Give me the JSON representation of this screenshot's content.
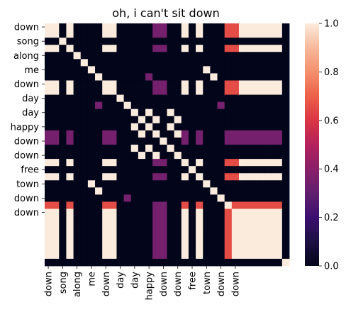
{
  "chart_data": {
    "type": "heatmap",
    "title": "oh, i can't sit down",
    "tokens": [
      "down",
      "down",
      "song",
      "down",
      "down",
      "along",
      "me",
      "me",
      "down",
      "down",
      "down",
      "day",
      "day",
      "day",
      "day",
      "happy",
      "happy",
      "down",
      "down",
      "down",
      "down",
      "down",
      "down",
      "free",
      "free",
      "town",
      "town",
      "down",
      "down",
      "down",
      "down",
      "down",
      "down",
      ""
    ],
    "x_tick_labels": [
      "down",
      "song",
      "along",
      "me",
      "down",
      "day",
      "day",
      "happy",
      "down",
      "down",
      "free",
      "town",
      "down",
      "down"
    ],
    "y_tick_labels": [
      "down",
      "song",
      "along",
      "me",
      "down",
      "day",
      "day",
      "happy",
      "down",
      "down",
      "free",
      "town",
      "down",
      "down"
    ],
    "value_range": [
      0.0,
      1.0
    ],
    "colorbar_ticks": [
      0.0,
      0.2,
      0.4,
      0.6,
      0.8,
      1.0
    ],
    "colorscale": "rocket",
    "matrix_note_values": "attention weights; values 0, ~0.35, ~0.65, 1.0",
    "values": [
      [
        1,
        1,
        0,
        1,
        0,
        0,
        0,
        0,
        1,
        1,
        0,
        0,
        0,
        0,
        0,
        0.35,
        0.35,
        0,
        0,
        1,
        0,
        1,
        0,
        0,
        0,
        0.65,
        0.65,
        1,
        1,
        1,
        1,
        1,
        1,
        0
      ],
      [
        1,
        1,
        0,
        1,
        0,
        0,
        0,
        0,
        1,
        1,
        0,
        0,
        0,
        0,
        0,
        0.35,
        0.35,
        0,
        0,
        1,
        0,
        1,
        0,
        0,
        0,
        0.65,
        0.65,
        1,
        1,
        1,
        1,
        1,
        1,
        0
      ],
      [
        0,
        0,
        1,
        0,
        0,
        0,
        0,
        0,
        0,
        0,
        0,
        0,
        0,
        0,
        0,
        0,
        0,
        0,
        0,
        0,
        0,
        0,
        0,
        0,
        0,
        0,
        0,
        0,
        0,
        0,
        0,
        0,
        0,
        0
      ],
      [
        1,
        1,
        0,
        1,
        0,
        0,
        0,
        0,
        1,
        1,
        0,
        0,
        0,
        0,
        0,
        0.35,
        0.35,
        0,
        0,
        1,
        0,
        1,
        0,
        0,
        0,
        0.65,
        0.65,
        1,
        1,
        1,
        1,
        1,
        1,
        0
      ],
      [
        0,
        0,
        0,
        0,
        1,
        0,
        0,
        0,
        0,
        0,
        0,
        0,
        0,
        0,
        0,
        0,
        0,
        0,
        0,
        0,
        0,
        0,
        0,
        0,
        0,
        0,
        0,
        0,
        0,
        0,
        0,
        0,
        0,
        0
      ],
      [
        0,
        0,
        0,
        0,
        0,
        1,
        0,
        0,
        0,
        0,
        0,
        0,
        0,
        0,
        0,
        0,
        0,
        0,
        0,
        0,
        0,
        0,
        0,
        0,
        0,
        0,
        0,
        0,
        0,
        0,
        0,
        0,
        0,
        0
      ],
      [
        0,
        0,
        0,
        0,
        0,
        0,
        1,
        0,
        0,
        0,
        0,
        0,
        0,
        0,
        0,
        0,
        0,
        0,
        0,
        0,
        0,
        0,
        1,
        0,
        0,
        0,
        0,
        0,
        0,
        0,
        0,
        0,
        0,
        0
      ],
      [
        0,
        0,
        0,
        0,
        0,
        0,
        0,
        1,
        0,
        0,
        0,
        0,
        0,
        0,
        0.35,
        0,
        0,
        0,
        0,
        0,
        0,
        0,
        0,
        1,
        0,
        0,
        0,
        0,
        0,
        0,
        0,
        0,
        0,
        0
      ],
      [
        1,
        1,
        0,
        1,
        0,
        0,
        0,
        0,
        1,
        1,
        0,
        0,
        0,
        0,
        0,
        0.35,
        0.35,
        0,
        0,
        1,
        0,
        1,
        0,
        0,
        0,
        0.65,
        0.65,
        1,
        1,
        1,
        1,
        1,
        1,
        0
      ],
      [
        1,
        1,
        0,
        1,
        0,
        0,
        0,
        0,
        1,
        1,
        0,
        0,
        0,
        0,
        0,
        0.35,
        0.35,
        0,
        0,
        1,
        0,
        1,
        0,
        0,
        0,
        0.65,
        0.65,
        1,
        1,
        1,
        1,
        1,
        1,
        0
      ],
      [
        0,
        0,
        0,
        0,
        0,
        0,
        0,
        0,
        0,
        0,
        1,
        0,
        0,
        0,
        0,
        0,
        0,
        0,
        0,
        0,
        0,
        0,
        0,
        0,
        0,
        0,
        0,
        0,
        0,
        0,
        0,
        0,
        0,
        0
      ],
      [
        0,
        0,
        0,
        0,
        0,
        0,
        0,
        0.35,
        0,
        0,
        0,
        1,
        0,
        0,
        0,
        0,
        0,
        0,
        0,
        0,
        0,
        0,
        0,
        0,
        0.35,
        0,
        0,
        0,
        0,
        0,
        0,
        0,
        0,
        0
      ],
      [
        0,
        0,
        0,
        0,
        0,
        0,
        0,
        0,
        0,
        0,
        0,
        0,
        1,
        0,
        1,
        0,
        0,
        1,
        0,
        0,
        0,
        0,
        0,
        0,
        0,
        0,
        0,
        0,
        0,
        0,
        0,
        0,
        0,
        0
      ],
      [
        0,
        0,
        0,
        0,
        0,
        0,
        0,
        0,
        0,
        0,
        0,
        0,
        0,
        1,
        0,
        1,
        0,
        0,
        1,
        0,
        0,
        0,
        0,
        0,
        0,
        0,
        0,
        0,
        0,
        0,
        0,
        0,
        0,
        0
      ],
      [
        0,
        0,
        0,
        0,
        0,
        0,
        0,
        0,
        0,
        0,
        0,
        0,
        1,
        0,
        1,
        0,
        0,
        1,
        0,
        0,
        0,
        0,
        0,
        0,
        0,
        0,
        0,
        0,
        0,
        0,
        0,
        0,
        0,
        0
      ],
      [
        0.35,
        0.35,
        0,
        0.35,
        0,
        0,
        0,
        0,
        0.35,
        0.35,
        0,
        0,
        0,
        1,
        0,
        1,
        0,
        0,
        1,
        0.35,
        0,
        0.35,
        0,
        0,
        0,
        0.35,
        0.35,
        0.35,
        0.35,
        0.35,
        0.35,
        0.35,
        0.35,
        0
      ],
      [
        0.35,
        0.35,
        0,
        0.35,
        0,
        0,
        0,
        0,
        0.35,
        0.35,
        0,
        0,
        0,
        0,
        0,
        0,
        1,
        0,
        0,
        0.35,
        0,
        0.35,
        0,
        0,
        0,
        0.35,
        0.35,
        0.35,
        0.35,
        0.35,
        0.35,
        0.35,
        0.35,
        0
      ],
      [
        0,
        0,
        0,
        0,
        0,
        0,
        0,
        0,
        0,
        0,
        0,
        0,
        1,
        0,
        1,
        0,
        0,
        1,
        0,
        0,
        0,
        0,
        0,
        0,
        0,
        0,
        0,
        0,
        0,
        0,
        0,
        0,
        0,
        0
      ],
      [
        0,
        0,
        0,
        0,
        0,
        0,
        0,
        0,
        0,
        0,
        0,
        0,
        0,
        1,
        0,
        1,
        0,
        0,
        1,
        0,
        0,
        0,
        0,
        0,
        0,
        0,
        0,
        0,
        0,
        0,
        0,
        0,
        0,
        0
      ],
      [
        1,
        1,
        0,
        1,
        0,
        0,
        0,
        0,
        1,
        1,
        0,
        0,
        0,
        0,
        0,
        0.35,
        0.35,
        0,
        0,
        1,
        0,
        1,
        0,
        0,
        0,
        0.65,
        0.65,
        1,
        1,
        1,
        1,
        1,
        1,
        0
      ],
      [
        0,
        0,
        0,
        0,
        0,
        0,
        0,
        0,
        0,
        0,
        0,
        0,
        0,
        0,
        0,
        0,
        0,
        0,
        0,
        0,
        1,
        0,
        0,
        0,
        0,
        0,
        0,
        0,
        0,
        0,
        0,
        0,
        0,
        0
      ],
      [
        1,
        1,
        0,
        1,
        0,
        0,
        0,
        0,
        1,
        1,
        0,
        0,
        0,
        0,
        0,
        0.35,
        0.35,
        0,
        0,
        1,
        0,
        1,
        0,
        0,
        0,
        0.65,
        0.65,
        1,
        1,
        1,
        1,
        1,
        1,
        0
      ],
      [
        0,
        0,
        0,
        0,
        0,
        0,
        1,
        0,
        0,
        0,
        0,
        0,
        0,
        0,
        0,
        0,
        0,
        0,
        0,
        0,
        0,
        0,
        1,
        0,
        0,
        0,
        0,
        0,
        0,
        0,
        0,
        0,
        0,
        0
      ],
      [
        0,
        0,
        0,
        0,
        0,
        0,
        0,
        1,
        0,
        0,
        0,
        0,
        0,
        0,
        0,
        0,
        0,
        0,
        0,
        0,
        0,
        0,
        0,
        1,
        0,
        0,
        0,
        0,
        0,
        0,
        0,
        0,
        0,
        0
      ],
      [
        0,
        0,
        0,
        0,
        0,
        0,
        0,
        0,
        0,
        0,
        0,
        0.35,
        0,
        0,
        0,
        0,
        0,
        0,
        0,
        0,
        0,
        0,
        0,
        0,
        1,
        0,
        0,
        0,
        0,
        0,
        0,
        0,
        0,
        0
      ],
      [
        0.65,
        0.65,
        0,
        0.65,
        0,
        0,
        0,
        0,
        0.65,
        0.65,
        0,
        0,
        0,
        0,
        0,
        0.35,
        0.35,
        0,
        0,
        0.65,
        0,
        0.65,
        0,
        0,
        0,
        1,
        0.65,
        0.65,
        0.65,
        0.65,
        0.65,
        0.65,
        0.65,
        0
      ],
      [
        1,
        1,
        0,
        1,
        0,
        0,
        0,
        0,
        1,
        1,
        0,
        0,
        0,
        0,
        0,
        0.35,
        0.35,
        0,
        0,
        1,
        0,
        1,
        0,
        0,
        0,
        0.65,
        1,
        1,
        1,
        1,
        1,
        1,
        1,
        0
      ],
      [
        1,
        1,
        0,
        1,
        0,
        0,
        0,
        0,
        1,
        1,
        0,
        0,
        0,
        0,
        0,
        0.35,
        0.35,
        0,
        0,
        1,
        0,
        1,
        0,
        0,
        0,
        0.65,
        1,
        1,
        1,
        1,
        1,
        1,
        1,
        0
      ],
      [
        1,
        1,
        0,
        1,
        0,
        0,
        0,
        0,
        1,
        1,
        0,
        0,
        0,
        0,
        0,
        0.35,
        0.35,
        0,
        0,
        1,
        0,
        1,
        0,
        0,
        0,
        0.65,
        1,
        1,
        1,
        1,
        1,
        1,
        1,
        0
      ],
      [
        1,
        1,
        0,
        1,
        0,
        0,
        0,
        0,
        1,
        1,
        0,
        0,
        0,
        0,
        0,
        0.35,
        0.35,
        0,
        0,
        1,
        0,
        1,
        0,
        0,
        0,
        0.65,
        1,
        1,
        1,
        1,
        1,
        1,
        1,
        0
      ],
      [
        1,
        1,
        0,
        1,
        0,
        0,
        0,
        0,
        1,
        1,
        0,
        0,
        0,
        0,
        0,
        0.35,
        0.35,
        0,
        0,
        1,
        0,
        1,
        0,
        0,
        0,
        0.65,
        1,
        1,
        1,
        1,
        1,
        1,
        1,
        0
      ],
      [
        1,
        1,
        0,
        1,
        0,
        0,
        0,
        0,
        1,
        1,
        0,
        0,
        0,
        0,
        0,
        0.35,
        0.35,
        0,
        0,
        1,
        0,
        1,
        0,
        0,
        0,
        0.65,
        1,
        1,
        1,
        1,
        1,
        1,
        1,
        0
      ],
      [
        1,
        1,
        0,
        1,
        0,
        0,
        0,
        0,
        1,
        1,
        0,
        0,
        0,
        0,
        0,
        0.35,
        0.35,
        0,
        0,
        1,
        0,
        1,
        0,
        0,
        0,
        0.65,
        1,
        1,
        1,
        1,
        1,
        1,
        1,
        0
      ],
      [
        0,
        0,
        0,
        0,
        0,
        0,
        0,
        0,
        0,
        0,
        0,
        0,
        0,
        0,
        0,
        0,
        0,
        0,
        0,
        0,
        0,
        0,
        0,
        0,
        0,
        0,
        0,
        0,
        0,
        0,
        0,
        0,
        0,
        1
      ]
    ]
  }
}
